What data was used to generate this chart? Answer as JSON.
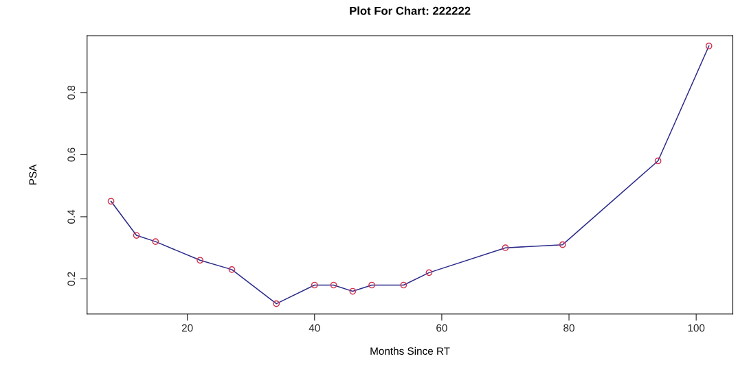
{
  "chart_data": {
    "type": "line",
    "title": "Plot For Chart: 222222",
    "xlabel": "Months Since RT",
    "ylabel": "PSA",
    "x": [
      8,
      12,
      15,
      22,
      27,
      34,
      40,
      43,
      46,
      49,
      54,
      58,
      70,
      79,
      94,
      102
    ],
    "series": [
      {
        "color": "#2b2b8c",
        "marker": "none",
        "values": [
          0.45,
          0.34,
          0.32,
          0.26,
          0.23,
          0.12,
          0.18,
          0.18,
          0.16,
          0.18,
          0.18,
          0.22,
          0.3,
          0.31,
          0.58,
          0.95
        ]
      },
      {
        "type": "scatter",
        "color": "#d0304a",
        "marker": "circle",
        "values": [
          0.45,
          0.34,
          0.32,
          0.26,
          0.23,
          0.12,
          0.18,
          0.18,
          0.16,
          0.18,
          0.18,
          0.22,
          0.3,
          0.31,
          0.58,
          0.95
        ]
      }
    ],
    "xlim": [
      4.24,
      105.76
    ],
    "xticks": [
      20,
      40,
      60,
      80,
      100
    ],
    "ylim": [
      0.087,
      0.983
    ],
    "yticks": [
      0.2,
      0.4,
      0.6,
      0.8
    ],
    "grid": false,
    "legend": false
  }
}
